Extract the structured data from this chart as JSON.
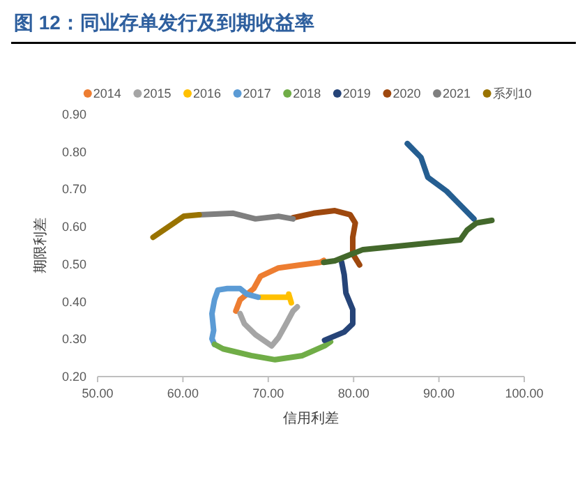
{
  "chart_data": {
    "type": "line",
    "title": "图 12：同业存单发行及到期收益率",
    "xlabel": "信用利差",
    "ylabel": "期限利差",
    "xlim": [
      50,
      100
    ],
    "xticks": [
      {
        "value": 50,
        "label": "50.00"
      },
      {
        "value": 60,
        "label": "60.00"
      },
      {
        "value": 70,
        "label": "70.00"
      },
      {
        "value": 80,
        "label": "80.00"
      },
      {
        "value": 90,
        "label": "90.00"
      },
      {
        "value": 100,
        "label": "100.00"
      }
    ],
    "ylim": [
      0.2,
      0.9
    ],
    "yticks": [
      {
        "value": 0.2,
        "label": "0.20"
      },
      {
        "value": 0.3,
        "label": "0.30"
      },
      {
        "value": 0.4,
        "label": "0.40"
      },
      {
        "value": 0.5,
        "label": "0.50"
      },
      {
        "value": 0.6,
        "label": "0.60"
      },
      {
        "value": 0.7,
        "label": "0.70"
      },
      {
        "value": 0.8,
        "label": "0.80"
      },
      {
        "value": 0.9,
        "label": "0.90"
      }
    ],
    "grid": false,
    "legend": "top",
    "line_style": "solid",
    "series": [
      {
        "name": "2014",
        "color": "#ed7d31",
        "x": [
          66.2,
          66.7,
          68.3,
          69.1,
          71.2,
          73.7,
          76.1,
          76.5
        ],
        "values": [
          0.375,
          0.405,
          0.435,
          0.468,
          0.49,
          0.498,
          0.505,
          0.51
        ]
      },
      {
        "name": "2015",
        "color": "#a5a5a5",
        "x": [
          66.7,
          67.2,
          68.5,
          70.4,
          71.2,
          72.1,
          72.9,
          73.4
        ],
        "values": [
          0.368,
          0.341,
          0.312,
          0.282,
          0.304,
          0.341,
          0.375,
          0.386
        ]
      },
      {
        "name": "2016",
        "color": "#ffc000",
        "x": [
          69.1,
          72.4,
          72.4,
          72.7
        ],
        "values": [
          0.412,
          0.412,
          0.42,
          0.397
        ]
      },
      {
        "name": "2017",
        "color": "#5b9bd5",
        "x": [
          68.8,
          67.5,
          66.7,
          65.2,
          64.1,
          63.7,
          63.4,
          63.6,
          63.4,
          63.7
        ],
        "values": [
          0.412,
          0.42,
          0.435,
          0.435,
          0.431,
          0.405,
          0.368,
          0.323,
          0.301,
          0.286
        ]
      },
      {
        "name": "2018",
        "color": "#70ad47",
        "x": [
          63.7,
          64.7,
          68.0,
          70.8,
          74.0,
          76.6,
          77.3
        ],
        "values": [
          0.286,
          0.274,
          0.256,
          0.245,
          0.256,
          0.282,
          0.293
        ]
      },
      {
        "name": "2019",
        "color": "#264478",
        "x": [
          76.6,
          78.9,
          79.9,
          79.9,
          79.1,
          78.9,
          78.6
        ],
        "values": [
          0.297,
          0.319,
          0.341,
          0.379,
          0.423,
          0.472,
          0.505
        ]
      },
      {
        "name": "2020",
        "color": "#9e480e",
        "x": [
          80.7,
          79.9,
          79.9,
          80.2,
          79.6,
          77.8,
          75.3,
          72.9
        ],
        "values": [
          0.498,
          0.528,
          0.572,
          0.61,
          0.632,
          0.643,
          0.636,
          0.624
        ]
      },
      {
        "name": "2021",
        "color": "#7f7f7f",
        "x": [
          72.9,
          71.2,
          68.5,
          65.9,
          61.9
        ],
        "values": [
          0.621,
          0.628,
          0.621,
          0.636,
          0.632
        ]
      },
      {
        "name": "系列10",
        "color": "#997300",
        "x": [
          61.9,
          60.1,
          56.5
        ],
        "values": [
          0.632,
          0.628,
          0.572
        ]
      },
      {
        "color": "#255e91",
        "x": [
          86.3,
          87.9,
          88.7,
          90.9,
          92.5,
          94.1
        ],
        "values": [
          0.822,
          0.785,
          0.732,
          0.695,
          0.658,
          0.621
        ]
      },
      {
        "color": "#43682b",
        "x": [
          76.5,
          77.8,
          81.1,
          86.0,
          92.5,
          93.3,
          94.4,
          96.2
        ],
        "values": [
          0.505,
          0.509,
          0.539,
          0.55,
          0.565,
          0.591,
          0.61,
          0.617
        ]
      }
    ]
  }
}
